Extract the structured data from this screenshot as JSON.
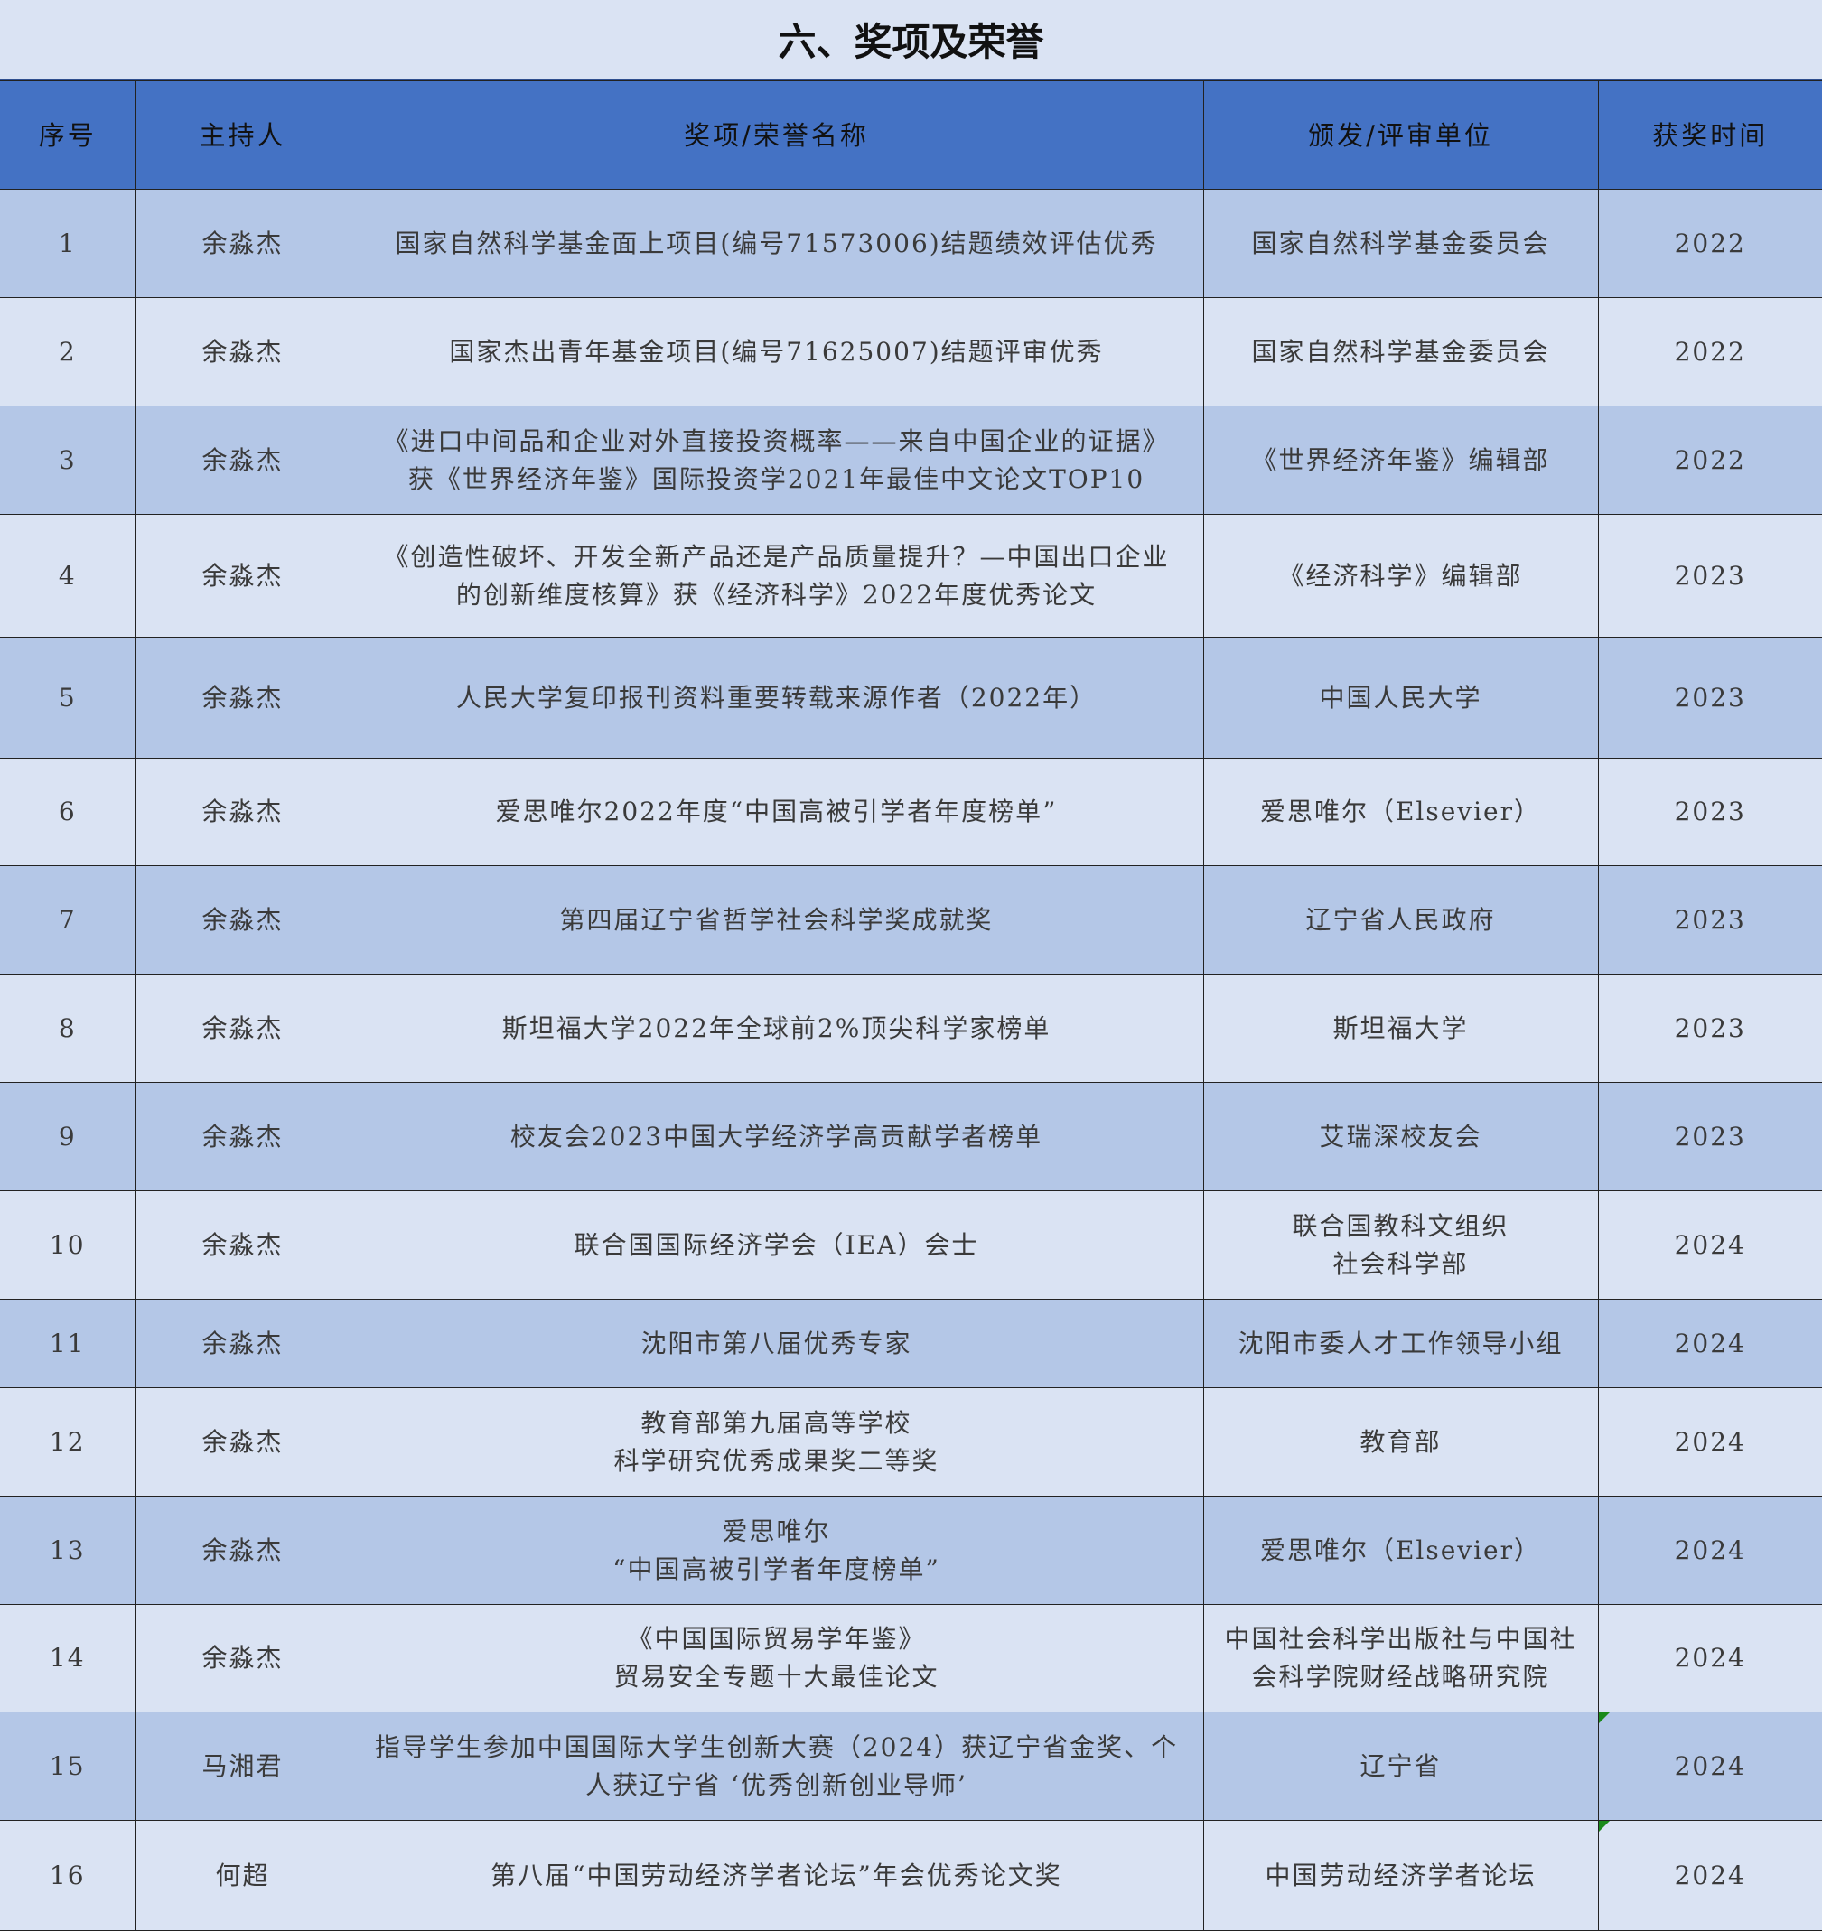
{
  "title": "六、奖项及荣誉",
  "columns": [
    "序号",
    "主持人",
    "奖项/荣誉名称",
    "颁发/评审单位",
    "获奖时间"
  ],
  "colors": {
    "header": "#4472c4",
    "row_dark": "#b4c7e7",
    "row_light": "#dae3f3"
  },
  "rows": [
    {
      "no": "1",
      "host": "余淼杰",
      "award": "国家自然科学基金面上项目(编号71573006)结题绩效评估优秀",
      "issuer": "国家自然科学基金委员会",
      "year": "2022"
    },
    {
      "no": "2",
      "host": "余淼杰",
      "award": "国家杰出青年基金项目(编号71625007)结题评审优秀",
      "issuer": "国家自然科学基金委员会",
      "year": "2022"
    },
    {
      "no": "3",
      "host": "余淼杰",
      "award": "《进口中间品和企业对外直接投资概率——来自中国企业的证据》\n获《世界经济年鉴》国际投资学2021年最佳中文论文TOP10",
      "issuer": "《世界经济年鉴》编辑部",
      "year": "2022"
    },
    {
      "no": "4",
      "host": "余淼杰",
      "award": "《创造性破坏、开发全新产品还是产品质量提升？—中国出口企业\n的创新维度核算》获《经济科学》2022年度优秀论文",
      "issuer": "《经济科学》编辑部",
      "year": "2023"
    },
    {
      "no": "5",
      "host": "余淼杰",
      "award": "人民大学复印报刊资料重要转载来源作者（2022年）",
      "issuer": "中国人民大学",
      "year": "2023"
    },
    {
      "no": "6",
      "host": "余淼杰",
      "award": "爱思唯尔2022年度“中国高被引学者年度榜单”",
      "issuer": "爱思唯尔（Elsevier）",
      "year": "2023"
    },
    {
      "no": "7",
      "host": "余淼杰",
      "award": "第四届辽宁省哲学社会科学奖成就奖",
      "issuer": "辽宁省人民政府",
      "year": "2023"
    },
    {
      "no": "8",
      "host": "余淼杰",
      "award": "斯坦福大学2022年全球前2%顶尖科学家榜单",
      "issuer": "斯坦福大学",
      "year": "2023"
    },
    {
      "no": "9",
      "host": "余淼杰",
      "award": "校友会2023中国大学经济学高贡献学者榜单",
      "issuer": "艾瑞深校友会",
      "year": "2023"
    },
    {
      "no": "10",
      "host": "余淼杰",
      "award": "联合国国际经济学会（IEA）会士",
      "issuer": "联合国教科文组织\n社会科学部",
      "year": "2024"
    },
    {
      "no": "11",
      "host": "余淼杰",
      "award": "沈阳市第八届优秀专家",
      "issuer": "沈阳市委人才工作领导小组",
      "year": "2024"
    },
    {
      "no": "12",
      "host": "余淼杰",
      "award": "教育部第九届高等学校\n科学研究优秀成果奖二等奖",
      "issuer": "教育部",
      "year": "2024"
    },
    {
      "no": "13",
      "host": "余淼杰",
      "award": "爱思唯尔\n“中国高被引学者年度榜单”",
      "issuer": "爱思唯尔（Elsevier）",
      "year": "2024"
    },
    {
      "no": "14",
      "host": "余淼杰",
      "award": "《中国国际贸易学年鉴》\n贸易安全专题十大最佳论文",
      "issuer": "中国社会科学出版社与中国社\n会科学院财经战略研究院",
      "year": "2024"
    },
    {
      "no": "15",
      "host": "马湘君",
      "award": "指导学生参加中国国际大学生创新大赛（2024）获辽宁省金奖、个\n人获辽宁省 ‘优秀创新创业导师’",
      "issuer": "辽宁省",
      "year": "2024"
    },
    {
      "no": "16",
      "host": "何超",
      "award": "第八届“中国劳动经济学者论坛”年会优秀论文奖",
      "issuer": "中国劳动经济学者论坛",
      "year": "2024"
    }
  ]
}
